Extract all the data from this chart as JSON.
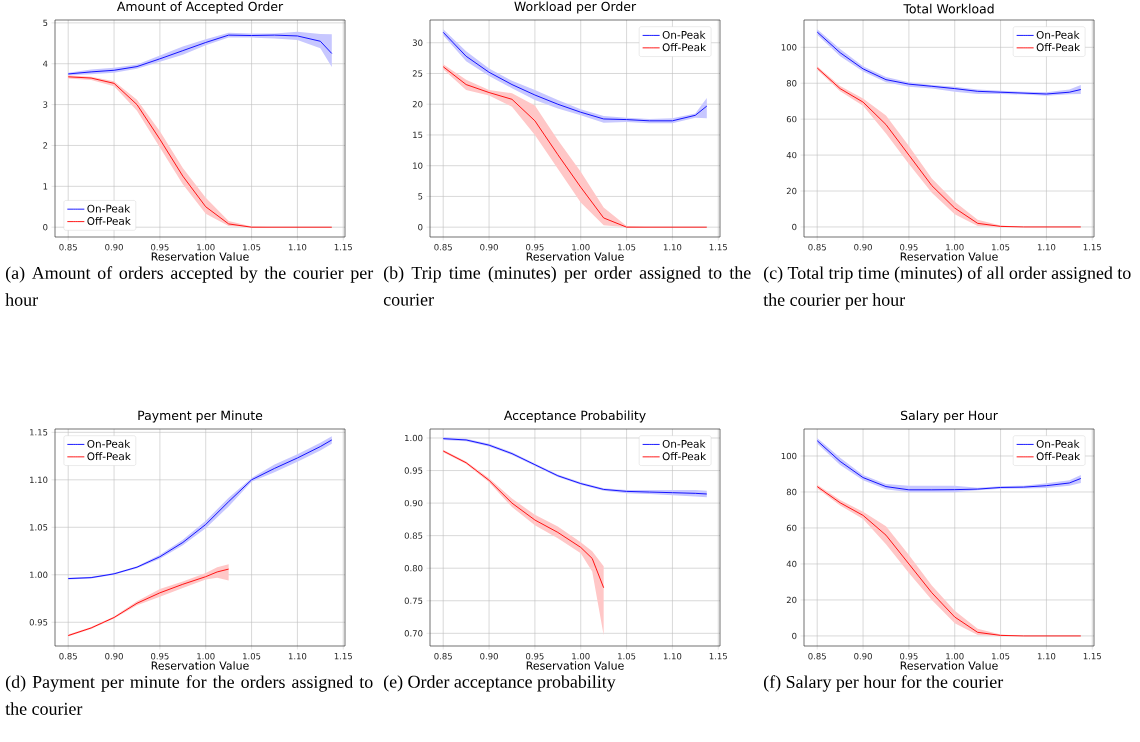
{
  "chart_data": [
    {
      "type": "line",
      "title": "Amount of Accepted Order",
      "xlabel": "Reservation Value",
      "annotations": [
        "(a) Amount of orders accepted by the courier per hour"
      ],
      "x": [
        0.85,
        0.875,
        0.9,
        0.925,
        0.95,
        0.975,
        1.0,
        1.025,
        1.05,
        1.075,
        1.1,
        1.125,
        1.1375
      ],
      "xlim": [
        0.8356,
        1.1519
      ],
      "xticks": [
        0.85,
        {
          "value": 0.9,
          "label": "0.90"
        },
        0.95,
        {
          "value": 1.0,
          "label": "1.00"
        },
        1.05,
        {
          "value": 1.1,
          "label": "1.10"
        },
        1.15
      ],
      "ylim": [
        -0.24,
        5.07
      ],
      "yticks": [
        0,
        1,
        2,
        3,
        4,
        5
      ],
      "grid": true,
      "legend": "bottom left",
      "series": [
        {
          "name": "On-Peak",
          "color": "#0000ff",
          "values": [
            3.75,
            3.8,
            3.84,
            3.93,
            4.12,
            4.32,
            4.52,
            4.7,
            4.69,
            4.7,
            4.68,
            4.55,
            4.25
          ],
          "upper": [
            3.78,
            3.86,
            3.9,
            3.98,
            4.2,
            4.42,
            4.6,
            4.76,
            4.74,
            4.74,
            4.78,
            4.73,
            4.72
          ],
          "lower": [
            3.72,
            3.74,
            3.78,
            3.88,
            4.05,
            4.22,
            4.45,
            4.64,
            4.64,
            4.62,
            4.58,
            4.38,
            3.92
          ]
        },
        {
          "name": "Off-Peak",
          "color": "#ff0000",
          "values": [
            3.68,
            3.65,
            3.52,
            3.0,
            2.15,
            1.25,
            0.5,
            0.08,
            0.0,
            0.0,
            0.0,
            0.0,
            0.0
          ],
          "upper": [
            3.72,
            3.68,
            3.57,
            3.12,
            2.35,
            1.45,
            0.72,
            0.15,
            0.02,
            0.0,
            0.0,
            0.0,
            0.0
          ],
          "lower": [
            3.64,
            3.6,
            3.45,
            2.85,
            1.95,
            1.05,
            0.33,
            0.03,
            0.0,
            0.0,
            0.0,
            0.0,
            0.0
          ]
        }
      ]
    },
    {
      "type": "line",
      "title": "Workload per Order",
      "xlabel": "Reservation Value",
      "annotations": [
        "(b) Trip time (minutes) per order assigned to the courier"
      ],
      "x": [
        0.85,
        0.875,
        0.9,
        0.925,
        0.95,
        0.975,
        1.0,
        1.025,
        1.05,
        1.075,
        1.1,
        1.125,
        1.1375
      ],
      "xlim": [
        0.8356,
        1.1519
      ],
      "xticks": [
        0.85,
        {
          "value": 0.9,
          "label": "0.90"
        },
        0.95,
        {
          "value": 1.0,
          "label": "1.00"
        },
        1.05,
        {
          "value": 1.1,
          "label": "1.10"
        },
        1.15
      ],
      "ylim": [
        -1.6,
        33.7
      ],
      "yticks": [
        0,
        5,
        10,
        15,
        20,
        25,
        30
      ],
      "grid": true,
      "legend": "top right",
      "series": [
        {
          "name": "On-Peak",
          "color": "#0000ff",
          "values": [
            31.7,
            27.8,
            25.2,
            23.2,
            21.5,
            20.0,
            18.7,
            17.6,
            17.5,
            17.3,
            17.3,
            18.2,
            19.7
          ],
          "upper": [
            32.2,
            28.6,
            25.8,
            23.8,
            22.3,
            20.7,
            19.2,
            18.1,
            17.8,
            17.6,
            17.7,
            18.5,
            21.0
          ],
          "lower": [
            31.2,
            27.0,
            24.6,
            22.6,
            20.7,
            19.3,
            18.2,
            17.0,
            17.1,
            16.9,
            16.9,
            17.8,
            17.7
          ]
        },
        {
          "name": "Off-Peak",
          "color": "#ff0000",
          "values": [
            26.1,
            23.2,
            21.9,
            20.8,
            17.3,
            11.8,
            6.5,
            1.5,
            0.0,
            0.0,
            0.0,
            0.0,
            0.0
          ],
          "upper": [
            26.5,
            24.0,
            22.3,
            21.8,
            19.8,
            14.2,
            9.0,
            3.2,
            0.2,
            0.0,
            0.0,
            0.0,
            0.0
          ],
          "lower": [
            25.7,
            22.3,
            21.4,
            19.6,
            15.0,
            9.5,
            4.0,
            0.3,
            0.0,
            0.0,
            0.0,
            0.0,
            0.0
          ]
        }
      ]
    },
    {
      "type": "line",
      "title": "Total Workload",
      "xlabel": "Reservation Value",
      "annotations": [
        "(c) Total trip time (minutes) of all order assigned to the courier per hour"
      ],
      "x": [
        0.85,
        0.875,
        0.9,
        0.925,
        0.95,
        0.975,
        1.0,
        1.025,
        1.05,
        1.075,
        1.1,
        1.125,
        1.1375
      ],
      "xlim": [
        0.8356,
        1.1519
      ],
      "xticks": [
        0.85,
        {
          "value": 0.9,
          "label": "0.90"
        },
        0.95,
        {
          "value": 1.0,
          "label": "1.00"
        },
        1.05,
        {
          "value": 1.1,
          "label": "1.10"
        },
        1.15
      ],
      "ylim": [
        -5.6,
        115.2
      ],
      "yticks": [
        0,
        20,
        40,
        60,
        80,
        100
      ],
      "grid": true,
      "legend": "top right",
      "series": [
        {
          "name": "On-Peak",
          "color": "#0000ff",
          "values": [
            108.5,
            97,
            88,
            82,
            79.5,
            78.3,
            77,
            75.5,
            75,
            74.5,
            74,
            75,
            76.5
          ],
          "upper": [
            110,
            99,
            89.5,
            83.5,
            80.5,
            79,
            78,
            76.5,
            75.8,
            75.3,
            75,
            76.5,
            79
          ],
          "lower": [
            107,
            95,
            86.5,
            80.5,
            78,
            77,
            75.3,
            74,
            74,
            73.7,
            73,
            73.8,
            74
          ]
        },
        {
          "name": "Off-Peak",
          "color": "#ff0000",
          "values": [
            88.5,
            77,
            69.5,
            57,
            40,
            23,
            10.5,
            2,
            0.3,
            0,
            0,
            0,
            0
          ],
          "upper": [
            89.5,
            78.5,
            71.5,
            62,
            45,
            27,
            14,
            4,
            0.8,
            0,
            0,
            0,
            0
          ],
          "lower": [
            87.5,
            75.5,
            67.5,
            52,
            35,
            19,
            7,
            0.5,
            0,
            0,
            0,
            0,
            0
          ]
        }
      ]
    },
    {
      "type": "line",
      "title": "Payment per Minute",
      "xlabel": "Reservation Value",
      "annotations": [
        "(d) Payment per minute for the orders assigned to the courier"
      ],
      "x": [
        0.85,
        0.875,
        0.9,
        0.925,
        0.95,
        0.975,
        1.0,
        1.025,
        1.05,
        1.075,
        1.1,
        1.125,
        1.1375
      ],
      "xlim": [
        0.8356,
        1.1519
      ],
      "xticks": [
        0.85,
        {
          "value": 0.9,
          "label": "0.90"
        },
        0.95,
        {
          "value": 1.0,
          "label": "1.00"
        },
        1.05,
        {
          "value": 1.1,
          "label": "1.10"
        },
        1.15
      ],
      "ylim": [
        0.925,
        1.1535
      ],
      "yticks": [
        0.95,
        {
          "value": 1.0,
          "label": "1.00"
        },
        1.05,
        {
          "value": 1.1,
          "label": "1.10"
        },
        1.15
      ],
      "grid": true,
      "legend": "top left",
      "series": [
        {
          "name": "On-Peak",
          "color": "#0000ff",
          "values": [
            0.996,
            0.997,
            1.001,
            1.008,
            1.019,
            1.034,
            1.053,
            1.077,
            1.1,
            1.112,
            1.123,
            1.135,
            1.142
          ],
          "upper": [
            0.997,
            0.998,
            1.002,
            1.009,
            1.021,
            1.037,
            1.057,
            1.081,
            1.102,
            1.116,
            1.127,
            1.139,
            1.146
          ],
          "lower": [
            0.995,
            0.996,
            1.0,
            1.007,
            1.017,
            1.031,
            1.049,
            1.072,
            1.098,
            1.108,
            1.119,
            1.131,
            1.138
          ]
        },
        {
          "name": "Off-Peak",
          "color": "#ff0000",
          "x": [
            0.85,
            0.875,
            0.9,
            0.925,
            0.95,
            0.975,
            1.0,
            1.0125,
            1.025
          ],
          "values": [
            0.936,
            0.944,
            0.955,
            0.97,
            0.981,
            0.99,
            0.998,
            1.003,
            1.006
          ],
          "upper": [
            0.937,
            0.945,
            0.956,
            0.972,
            0.985,
            0.993,
            1.002,
            1.008,
            1.011
          ],
          "lower": [
            0.935,
            0.943,
            0.954,
            0.968,
            0.977,
            0.986,
            0.995,
            0.997,
            0.994
          ]
        }
      ]
    },
    {
      "type": "line",
      "title": "Acceptance Probability",
      "xlabel": "Reservation Value",
      "annotations": [
        "(e) Order acceptance probability"
      ],
      "x": [
        0.85,
        0.875,
        0.9,
        0.925,
        0.95,
        0.975,
        1.0,
        1.025,
        1.05,
        1.075,
        1.1,
        1.125,
        1.1375
      ],
      "xlim": [
        0.8356,
        1.1519
      ],
      "xticks": [
        0.85,
        {
          "value": 0.9,
          "label": "0.90"
        },
        0.95,
        {
          "value": 1.0,
          "label": "1.00"
        },
        1.05,
        {
          "value": 1.1,
          "label": "1.10"
        },
        1.15
      ],
      "ylim": [
        0.6805,
        1.0138
      ],
      "yticks": [
        {
          "value": 0.7,
          "label": "0.70"
        },
        0.75,
        {
          "value": 0.8,
          "label": "0.80"
        },
        0.85,
        {
          "value": 0.9,
          "label": "0.90"
        },
        0.95,
        {
          "value": 1.0,
          "label": "1.00"
        }
      ],
      "grid": true,
      "legend": "top right",
      "series": [
        {
          "name": "On-Peak",
          "color": "#0000ff",
          "values": [
            0.999,
            0.997,
            0.989,
            0.976,
            0.959,
            0.942,
            0.93,
            0.921,
            0.918,
            0.917,
            0.916,
            0.915,
            0.914
          ],
          "upper": [
            1.001,
            0.999,
            0.991,
            0.978,
            0.961,
            0.944,
            0.932,
            0.923,
            0.92,
            0.92,
            0.92,
            0.92,
            0.919
          ],
          "lower": [
            0.997,
            0.995,
            0.987,
            0.974,
            0.957,
            0.94,
            0.928,
            0.919,
            0.915,
            0.914,
            0.912,
            0.91,
            0.909
          ]
        },
        {
          "name": "Off-Peak",
          "color": "#ff0000",
          "x": [
            0.85,
            0.875,
            0.9,
            0.925,
            0.95,
            0.975,
            1.0,
            1.0125,
            1.025
          ],
          "values": [
            0.98,
            0.962,
            0.935,
            0.9,
            0.874,
            0.855,
            0.832,
            0.815,
            0.77
          ],
          "upper": [
            0.982,
            0.964,
            0.938,
            0.907,
            0.882,
            0.864,
            0.84,
            0.826,
            0.803
          ],
          "lower": [
            0.978,
            0.96,
            0.932,
            0.894,
            0.866,
            0.846,
            0.823,
            0.795,
            0.697
          ]
        }
      ]
    },
    {
      "type": "line",
      "title": "Salary per Hour",
      "xlabel": "Reservation Value",
      "annotations": [
        "(f) Salary per hour for the courier"
      ],
      "x": [
        0.85,
        0.875,
        0.9,
        0.925,
        0.95,
        0.975,
        1.0,
        1.025,
        1.05,
        1.075,
        1.1,
        1.125,
        1.1375
      ],
      "xlim": [
        0.8356,
        1.1519
      ],
      "xticks": [
        0.85,
        {
          "value": 0.9,
          "label": "0.90"
        },
        0.95,
        {
          "value": 1.0,
          "label": "1.00"
        },
        1.05,
        {
          "value": 1.1,
          "label": "1.10"
        },
        1.15
      ],
      "ylim": [
        -5.6,
        115.0
      ],
      "yticks": [
        0,
        20,
        40,
        60,
        80,
        100
      ],
      "grid": true,
      "legend": "top right",
      "series": [
        {
          "name": "On-Peak",
          "color": "#0000ff",
          "values": [
            108.5,
            97,
            88,
            83,
            81.2,
            81.2,
            81.3,
            81.6,
            82.5,
            82.7,
            83.5,
            85,
            87.5
          ],
          "upper": [
            110,
            99,
            89.5,
            84.5,
            83.4,
            83.5,
            83.4,
            82.3,
            83.2,
            83.5,
            84.8,
            86.5,
            89.5
          ],
          "lower": [
            107,
            95,
            86.5,
            81.5,
            79.9,
            79.8,
            79.9,
            80.9,
            81.8,
            81.9,
            82.2,
            83.5,
            85
          ]
        },
        {
          "name": "Off-Peak",
          "color": "#ff0000",
          "values": [
            83,
            74,
            67,
            56,
            40,
            24,
            10.5,
            2,
            0.3,
            0,
            0,
            0,
            0
          ],
          "upper": [
            84,
            75.5,
            69,
            61,
            45,
            28,
            14,
            4,
            0.8,
            0,
            0,
            0,
            0
          ],
          "lower": [
            82,
            72.5,
            65,
            51,
            35,
            20,
            7,
            0.5,
            0,
            0,
            0,
            0,
            0
          ]
        }
      ]
    }
  ]
}
